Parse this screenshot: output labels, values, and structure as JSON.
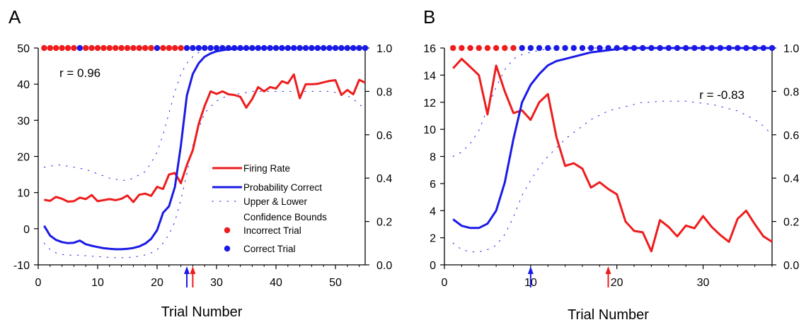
{
  "chart_data": [
    {
      "type": "line",
      "panel_label": "A",
      "xlabel": "Trial Number",
      "xlim": [
        0,
        55
      ],
      "ylim_left": [
        -10,
        50
      ],
      "ylim_right": [
        0.0,
        1.0
      ],
      "xticks": [
        "0",
        "10",
        "20",
        "30",
        "40",
        "50"
      ],
      "yticks_left": [
        "-10",
        "0",
        "10",
        "20",
        "30",
        "40",
        "50"
      ],
      "yticks_right": [
        "0.0",
        "0.2",
        "0.4",
        "0.6",
        "0.8",
        "1.0"
      ],
      "annotation": "r = 0.96",
      "colors": {
        "firing": "#ee1c1c",
        "probability": "#1a1ae6",
        "incorrect": "#ee1c1c",
        "correct": "#1a1ae6"
      },
      "legend": {
        "position": "lower-right",
        "entries": [
          "Firing Rate",
          "Probability Correct",
          "Upper & Lower",
          "Confidence Bounds",
          "Incorrect Trial",
          "Correct Trial"
        ]
      },
      "arrows": {
        "blue_x": 25,
        "red_x": 26
      },
      "series": [
        {
          "name": "Firing Rate",
          "axis": "left",
          "x": [
            1,
            2,
            3,
            4,
            5,
            6,
            7,
            8,
            9,
            10,
            11,
            12,
            13,
            14,
            15,
            16,
            17,
            18,
            19,
            20,
            21,
            22,
            23,
            24,
            25,
            26,
            27,
            28,
            29,
            30,
            31,
            32,
            33,
            34,
            35,
            36,
            37,
            38,
            39,
            40,
            41,
            42,
            43,
            44,
            45,
            46,
            47,
            48,
            49,
            50,
            51,
            52,
            53,
            54,
            55
          ],
          "values": [
            8,
            7.7,
            8.8,
            8.3,
            7.5,
            7.6,
            8.6,
            8.2,
            9.3,
            7.6,
            7.9,
            8.2,
            7.9,
            8.3,
            9.2,
            7.4,
            9.4,
            9.7,
            9.1,
            11.6,
            11.0,
            15.0,
            15.4,
            12.6,
            17.6,
            21.7,
            29.0,
            34.0,
            38.0,
            37.3,
            38.0,
            37.2,
            37.0,
            36.5,
            33.5,
            35.9,
            39.2,
            38.0,
            39.2,
            38.8,
            40.8,
            40.2,
            42.7,
            36.1,
            40.0,
            40.0,
            40.1,
            40.5,
            40.9,
            41.1,
            37.0,
            38.4,
            37.2,
            41.2,
            40.4
          ]
        },
        {
          "name": "Probability Correct",
          "axis": "right",
          "x": [
            1,
            2,
            3,
            4,
            5,
            6,
            7,
            8,
            9,
            10,
            11,
            12,
            13,
            14,
            15,
            16,
            17,
            18,
            19,
            20,
            21,
            22,
            23,
            24,
            25,
            26,
            27,
            28,
            29,
            30,
            31,
            32,
            33,
            34,
            35,
            36,
            37,
            38,
            39,
            40,
            41,
            42,
            43,
            44,
            45,
            46,
            47,
            48,
            49,
            50,
            51,
            52,
            53,
            54,
            55
          ],
          "values": [
            0.18,
            0.135,
            0.115,
            0.105,
            0.1,
            0.102,
            0.112,
            0.095,
            0.088,
            0.082,
            0.077,
            0.074,
            0.072,
            0.072,
            0.074,
            0.078,
            0.085,
            0.098,
            0.12,
            0.16,
            0.24,
            0.27,
            0.36,
            0.55,
            0.78,
            0.88,
            0.93,
            0.96,
            0.975,
            0.985,
            0.99,
            0.994,
            0.996,
            0.997,
            0.998,
            0.999,
            0.999,
            1,
            1,
            1,
            1,
            1,
            1,
            1,
            1,
            1,
            1,
            1,
            1,
            1,
            1,
            1,
            1,
            1,
            1
          ]
        },
        {
          "name": "Upper & Lower Confidence Bounds",
          "axis": "right",
          "x": [
            1,
            2,
            3,
            4,
            5,
            6,
            7,
            8,
            9,
            10,
            11,
            12,
            13,
            14,
            15,
            16,
            17,
            18,
            19,
            20,
            21,
            22,
            23,
            24,
            25,
            26,
            27,
            28,
            29,
            30,
            31,
            32,
            33,
            34,
            35,
            36,
            37,
            38,
            39,
            40,
            41,
            42,
            43,
            44,
            45,
            46,
            47,
            48,
            49,
            50,
            51,
            52,
            53,
            54,
            55
          ],
          "upper": [
            0.45,
            0.455,
            0.46,
            0.46,
            0.455,
            0.45,
            0.445,
            0.44,
            0.43,
            0.42,
            0.41,
            0.4,
            0.395,
            0.39,
            0.39,
            0.4,
            0.415,
            0.43,
            0.47,
            0.52,
            0.6,
            0.7,
            0.8,
            0.88,
            0.93,
            0.96,
            0.98,
            0.99,
            0.995,
            1,
            1,
            1,
            1,
            1,
            1,
            1,
            1,
            1,
            1,
            1,
            1,
            1,
            1,
            1,
            1,
            1,
            1,
            1,
            1,
            1,
            1,
            1,
            1,
            1,
            1
          ],
          "lower": [
            0.1,
            0.07,
            0.055,
            0.048,
            0.045,
            0.045,
            0.045,
            0.042,
            0.04,
            0.038,
            0.036,
            0.034,
            0.033,
            0.033,
            0.034,
            0.036,
            0.04,
            0.046,
            0.055,
            0.07,
            0.1,
            0.14,
            0.2,
            0.3,
            0.42,
            0.55,
            0.63,
            0.7,
            0.73,
            0.755,
            0.77,
            0.78,
            0.785,
            0.79,
            0.795,
            0.8,
            0.8,
            0.8,
            0.8,
            0.8,
            0.8,
            0.8,
            0.8,
            0.8,
            0.8,
            0.8,
            0.8,
            0.8,
            0.8,
            0.795,
            0.79,
            0.78,
            0.765,
            0.74,
            0.72
          ]
        }
      ],
      "trials": {
        "x": [
          1,
          2,
          3,
          4,
          5,
          6,
          7,
          8,
          9,
          10,
          11,
          12,
          13,
          14,
          15,
          16,
          17,
          18,
          19,
          20,
          21,
          22,
          23,
          24,
          25,
          26,
          27,
          28,
          29,
          30,
          31,
          32,
          33,
          34,
          35,
          36,
          37,
          38,
          39,
          40,
          41,
          42,
          43,
          44,
          45,
          46,
          47,
          48,
          49,
          50,
          51,
          52,
          53,
          54,
          55
        ],
        "outcome": [
          "incorrect",
          "incorrect",
          "incorrect",
          "incorrect",
          "incorrect",
          "incorrect",
          "correct",
          "incorrect",
          "incorrect",
          "incorrect",
          "incorrect",
          "incorrect",
          "incorrect",
          "incorrect",
          "incorrect",
          "incorrect",
          "incorrect",
          "incorrect",
          "incorrect",
          "correct",
          "incorrect",
          "incorrect",
          "incorrect",
          "incorrect",
          "correct",
          "correct",
          "correct",
          "correct",
          "correct",
          "correct",
          "correct",
          "correct",
          "correct",
          "correct",
          "correct",
          "correct",
          "correct",
          "correct",
          "correct",
          "correct",
          "correct",
          "correct",
          "correct",
          "correct",
          "correct",
          "correct",
          "correct",
          "correct",
          "correct",
          "correct",
          "correct",
          "correct",
          "correct",
          "correct",
          "correct"
        ]
      }
    },
    {
      "type": "line",
      "panel_label": "B",
      "xlabel": "Trial Number",
      "xlim": [
        0,
        38
      ],
      "ylim_left": [
        0,
        16
      ],
      "ylim_right": [
        0.0,
        1.0
      ],
      "xticks": [
        "0",
        "10",
        "20",
        "30"
      ],
      "yticks_left": [
        "0",
        "2",
        "4",
        "6",
        "8",
        "10",
        "12",
        "14",
        "16"
      ],
      "yticks_right": [
        "0.0",
        "0.2",
        "0.4",
        "0.6",
        "0.8",
        "1.0"
      ],
      "annotation": "r = -0.83",
      "colors": {
        "firing": "#ee1c1c",
        "probability": "#1a1ae6",
        "incorrect": "#ee1c1c",
        "correct": "#1a1ae6"
      },
      "arrows": {
        "blue_x": 10,
        "red_x": 19
      },
      "series": [
        {
          "name": "Firing Rate",
          "axis": "left",
          "x": [
            1,
            2,
            3,
            4,
            5,
            6,
            7,
            8,
            9,
            10,
            11,
            12,
            13,
            14,
            15,
            16,
            17,
            18,
            19,
            20,
            21,
            22,
            23,
            24,
            25,
            26,
            27,
            28,
            29,
            30,
            31,
            32,
            33,
            34,
            35,
            36,
            37,
            38
          ],
          "values": [
            14.5,
            15.2,
            14.6,
            14.0,
            11.1,
            14.7,
            12.8,
            11.2,
            11.4,
            10.7,
            12.0,
            12.6,
            9.4,
            7.3,
            7.5,
            7.1,
            5.7,
            6.1,
            5.6,
            5.2,
            3.2,
            2.5,
            2.4,
            1.0,
            3.3,
            2.8,
            2.1,
            2.9,
            2.7,
            3.6,
            2.8,
            2.2,
            1.7,
            3.4,
            4.0,
            3.0,
            2.1,
            1.7
          ]
        },
        {
          "name": "Probability Correct",
          "axis": "right",
          "x": [
            1,
            2,
            3,
            4,
            5,
            6,
            7,
            8,
            9,
            10,
            11,
            12,
            13,
            14,
            15,
            16,
            17,
            18,
            19,
            20,
            21,
            22,
            23,
            24,
            25,
            26,
            27,
            28,
            29,
            30,
            31,
            32,
            33,
            34,
            35,
            36,
            37,
            38
          ],
          "values": [
            0.21,
            0.18,
            0.17,
            0.17,
            0.19,
            0.25,
            0.38,
            0.58,
            0.75,
            0.83,
            0.88,
            0.92,
            0.94,
            0.95,
            0.96,
            0.97,
            0.98,
            0.985,
            0.99,
            0.995,
            1,
            1,
            1,
            1,
            1,
            1,
            1,
            1,
            1,
            1,
            1,
            1,
            1,
            1,
            1,
            1,
            1,
            1
          ]
        },
        {
          "name": "Upper & Lower Confidence Bounds",
          "axis": "right",
          "x": [
            1,
            2,
            3,
            4,
            5,
            6,
            7,
            8,
            9,
            10,
            11,
            12,
            13,
            14,
            15,
            16,
            17,
            18,
            19,
            20,
            21,
            22,
            23,
            24,
            25,
            26,
            27,
            28,
            29,
            30,
            31,
            32,
            33,
            34,
            35,
            36,
            37,
            38
          ],
          "upper": [
            0.5,
            0.52,
            0.56,
            0.62,
            0.72,
            0.82,
            0.9,
            0.95,
            0.97,
            0.98,
            0.99,
            0.995,
            1,
            1,
            1,
            1,
            1,
            1,
            1,
            1,
            1,
            1,
            1,
            1,
            1,
            1,
            1,
            1,
            1,
            1,
            1,
            1,
            1,
            1,
            1,
            1,
            1,
            1
          ],
          "lower": [
            0.1,
            0.07,
            0.06,
            0.06,
            0.07,
            0.09,
            0.14,
            0.22,
            0.32,
            0.39,
            0.45,
            0.5,
            0.54,
            0.58,
            0.61,
            0.64,
            0.67,
            0.69,
            0.71,
            0.72,
            0.73,
            0.74,
            0.75,
            0.75,
            0.755,
            0.755,
            0.755,
            0.755,
            0.75,
            0.745,
            0.74,
            0.73,
            0.72,
            0.71,
            0.69,
            0.67,
            0.64,
            0.6
          ]
        }
      ],
      "trials": {
        "x": [
          1,
          2,
          3,
          4,
          5,
          6,
          7,
          8,
          9,
          10,
          11,
          12,
          13,
          14,
          15,
          16,
          17,
          18,
          19,
          20,
          21,
          22,
          23,
          24,
          25,
          26,
          27,
          28,
          29,
          30,
          31,
          32,
          33,
          34,
          35,
          36,
          37,
          38
        ],
        "outcome": [
          "incorrect",
          "incorrect",
          "incorrect",
          "incorrect",
          "incorrect",
          "incorrect",
          "incorrect",
          "incorrect",
          "correct",
          "correct",
          "correct",
          "correct",
          "correct",
          "correct",
          "correct",
          "correct",
          "correct",
          "correct",
          "correct",
          "correct",
          "correct",
          "correct",
          "correct",
          "correct",
          "correct",
          "correct",
          "correct",
          "correct",
          "correct",
          "correct",
          "correct",
          "correct",
          "correct",
          "correct",
          "correct",
          "correct",
          "correct",
          "correct"
        ]
      }
    }
  ]
}
